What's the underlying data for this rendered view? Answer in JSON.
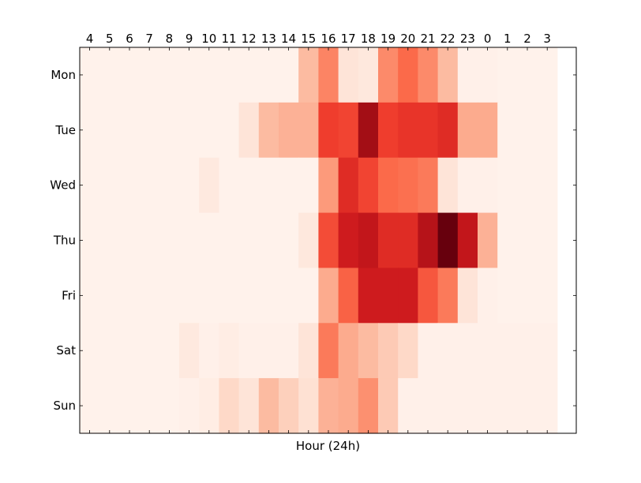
{
  "chart_data": {
    "type": "heatmap",
    "title": "",
    "xlabel": "Hour (24h)",
    "ylabel": "",
    "x_categories": [
      "4",
      "5",
      "6",
      "7",
      "8",
      "9",
      "10",
      "11",
      "12",
      "13",
      "14",
      "15",
      "16",
      "17",
      "18",
      "19",
      "20",
      "21",
      "22",
      "23",
      "0",
      "1",
      "2",
      "3"
    ],
    "y_categories": [
      "Mon",
      "Tue",
      "Wed",
      "Thu",
      "Fri",
      "Sat",
      "Sun"
    ],
    "x_tick_position": "top",
    "colormap": "Reds",
    "value_range": [
      0,
      1
    ],
    "values": [
      [
        0.02,
        0.02,
        0.02,
        0.02,
        0.02,
        0.02,
        0.02,
        0.02,
        0.02,
        0.02,
        0.02,
        0.25,
        0.42,
        0.1,
        0.08,
        0.4,
        0.5,
        0.4,
        0.25,
        0.03,
        0.03,
        0.02,
        0.02,
        0.02
      ],
      [
        0.02,
        0.02,
        0.02,
        0.02,
        0.02,
        0.02,
        0.02,
        0.02,
        0.1,
        0.25,
        0.28,
        0.28,
        0.62,
        0.6,
        0.88,
        0.62,
        0.65,
        0.65,
        0.68,
        0.3,
        0.3,
        0.02,
        0.02,
        0.02
      ],
      [
        0.02,
        0.02,
        0.02,
        0.02,
        0.02,
        0.02,
        0.07,
        0.02,
        0.02,
        0.02,
        0.02,
        0.02,
        0.35,
        0.68,
        0.6,
        0.5,
        0.48,
        0.45,
        0.1,
        0.03,
        0.03,
        0.02,
        0.02,
        0.02
      ],
      [
        0.02,
        0.02,
        0.02,
        0.02,
        0.02,
        0.02,
        0.02,
        0.02,
        0.02,
        0.02,
        0.02,
        0.08,
        0.58,
        0.74,
        0.78,
        0.68,
        0.68,
        0.82,
        1.0,
        0.78,
        0.28,
        0.02,
        0.02,
        0.02
      ],
      [
        0.02,
        0.02,
        0.02,
        0.02,
        0.02,
        0.02,
        0.02,
        0.02,
        0.02,
        0.02,
        0.02,
        0.02,
        0.3,
        0.52,
        0.74,
        0.74,
        0.74,
        0.55,
        0.45,
        0.1,
        0.03,
        0.02,
        0.02,
        0.02
      ],
      [
        0.02,
        0.02,
        0.02,
        0.02,
        0.02,
        0.07,
        0.03,
        0.05,
        0.03,
        0.03,
        0.03,
        0.1,
        0.45,
        0.3,
        0.25,
        0.2,
        0.15,
        0.03,
        0.03,
        0.03,
        0.03,
        0.03,
        0.03,
        0.03
      ],
      [
        0.02,
        0.02,
        0.02,
        0.02,
        0.02,
        0.03,
        0.05,
        0.15,
        0.1,
        0.25,
        0.18,
        0.12,
        0.28,
        0.3,
        0.38,
        0.2,
        0.03,
        0.03,
        0.03,
        0.03,
        0.03,
        0.03,
        0.03,
        0.03
      ]
    ],
    "grid": false,
    "legend": "none"
  }
}
